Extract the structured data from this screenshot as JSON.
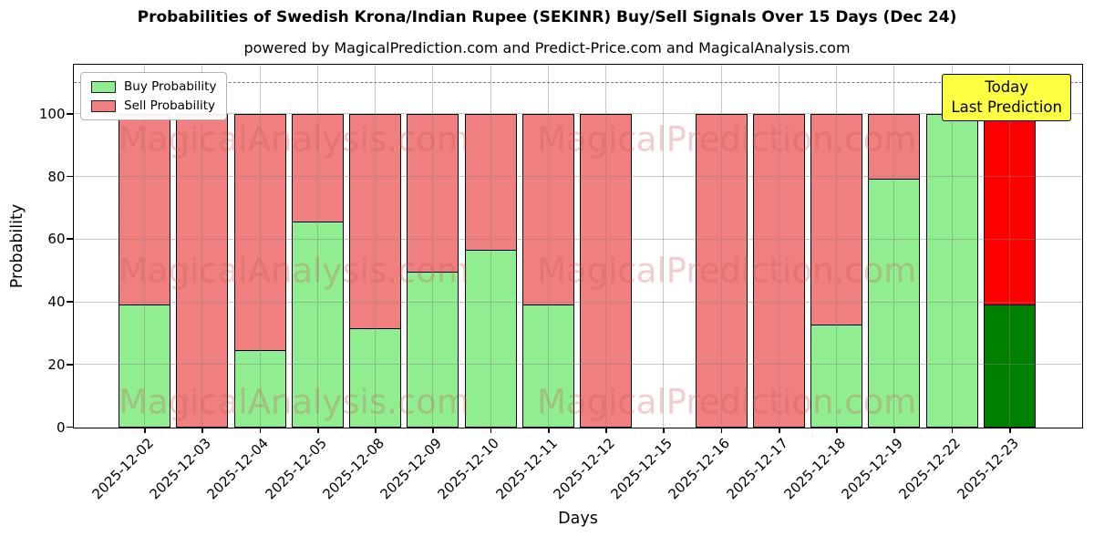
{
  "header": {
    "title": "Probabilities of Swedish Krona/Indian Rupee (SEKINR) Buy/Sell Signals Over 15 Days (Dec 24)",
    "subtitle": "powered by MagicalPrediction.com and Predict-Price.com and MagicalAnalysis.com"
  },
  "legend": {
    "items": [
      {
        "label": "Buy Probability",
        "color": "#90EE90"
      },
      {
        "label": "Sell Probability",
        "color": "#F08080"
      }
    ]
  },
  "today_box": {
    "lines": [
      "Today",
      "Last Prediction"
    ],
    "bg_color": "#FFFF42",
    "border_color": "#000000"
  },
  "watermarks": {
    "left_text": "MagicalAnalysis.com",
    "right_text": "MagicalPrediction.com",
    "color": "rgba(205,92,92,0.30)"
  },
  "chart_data": {
    "type": "bar",
    "stacked": true,
    "title": "Probabilities of Swedish Krona/Indian Rupee (SEKINR) Buy/Sell Signals Over 15 Days (Dec 24)",
    "xlabel": "Days",
    "ylabel": "Probability",
    "ylim": [
      0,
      115.5
    ],
    "yticks": [
      0,
      20,
      40,
      60,
      80,
      100
    ],
    "grid": true,
    "dashed_hline_y": 110,
    "legend_position": "upper left",
    "bar_edge_color": "#000000",
    "categories": [
      "2025-12-02",
      "2025-12-03",
      "2025-12-04",
      "2025-12-05",
      "2025-12-08",
      "2025-12-09",
      "2025-12-10",
      "2025-12-11",
      "2025-12-12",
      "2025-12-15",
      "2025-12-16",
      "2025-12-17",
      "2025-12-18",
      "2025-12-19",
      "2025-12-22",
      "2025-12-23"
    ],
    "series": [
      {
        "name": "Buy Probability",
        "color": "#90EE90",
        "values": [
          39.5,
          0,
          25,
          66,
          32,
          50,
          57,
          39.5,
          0,
          0,
          0,
          0,
          33,
          79.5,
          100,
          39.5
        ]
      },
      {
        "name": "Sell Probability",
        "color": "#F08080",
        "values": [
          60.5,
          100,
          75,
          34,
          68,
          50,
          43,
          60.5,
          100,
          0,
          100,
          100,
          67,
          20.5,
          0,
          60.5
        ]
      }
    ],
    "today_highlight": {
      "category": "2025-12-23",
      "index": 15,
      "buy_color": "#008000",
      "sell_color": "#FF0000"
    }
  }
}
